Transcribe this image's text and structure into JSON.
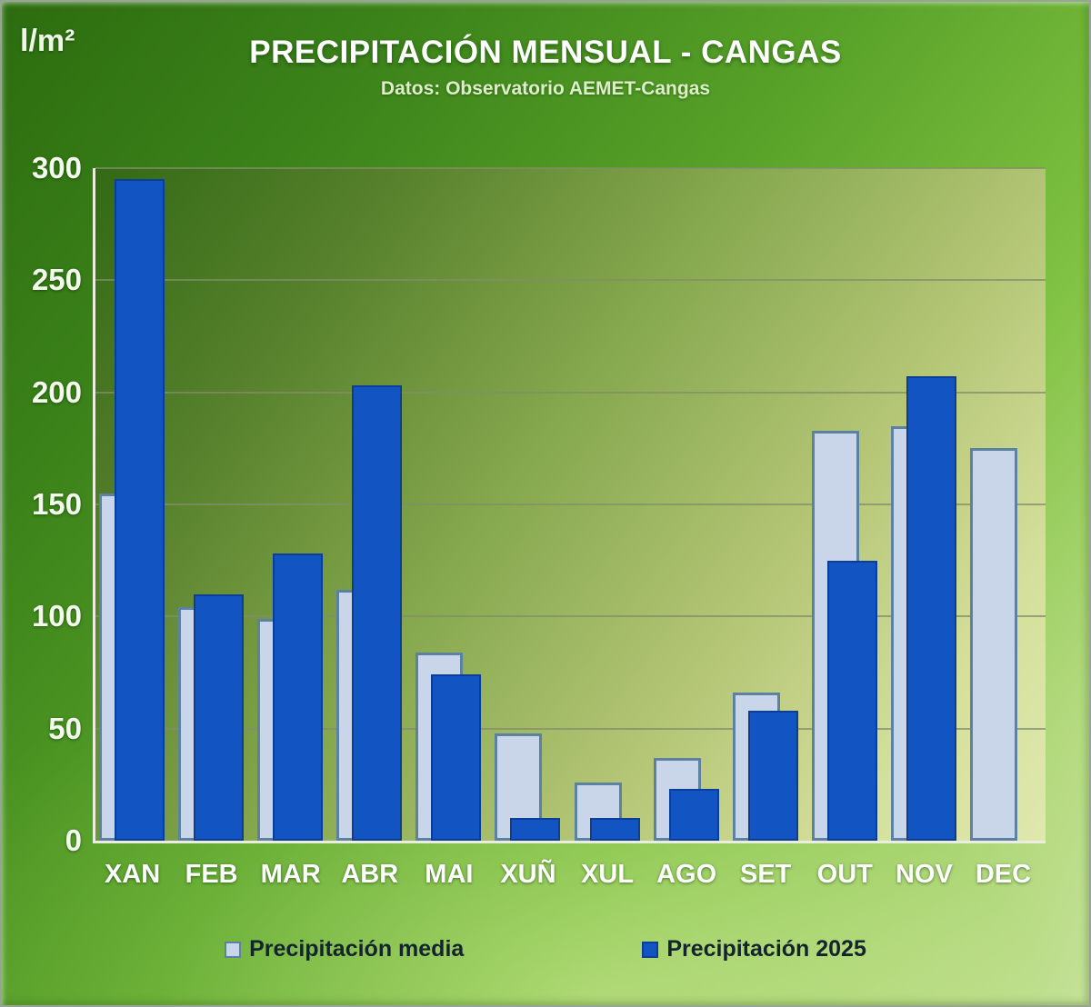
{
  "header": {
    "title": "PRECIPITACIÓN MENSUAL - CANGAS",
    "subtitle": "Datos: Observatorio AEMET-Cangas",
    "y_axis_unit": "l/m²"
  },
  "chart_data": {
    "type": "bar",
    "title": "PRECIPITACIÓN MENSUAL - CANGAS",
    "subtitle": "Datos: Observatorio AEMET-Cangas",
    "ylabel": "l/m²",
    "ylim": [
      0,
      300
    ],
    "ytick_interval": 50,
    "yticks": [
      300,
      250,
      200,
      150,
      100,
      50,
      0
    ],
    "grid": true,
    "legend_position": "bottom",
    "categories": [
      "XAN",
      "FEB",
      "MAR",
      "ABR",
      "MAI",
      "XUÑ",
      "XUL",
      "AGO",
      "SET",
      "OUT",
      "NOV",
      "DEC"
    ],
    "series": [
      {
        "name": "Precipitación media",
        "color": "#c9d6ea",
        "border_color": "#5d81a0",
        "values": [
          155,
          104,
          99,
          112,
          84,
          48,
          26,
          37,
          66,
          183,
          185,
          175
        ]
      },
      {
        "name": "Precipitación 2025",
        "color": "#1254c2",
        "border_color": "#0d3e97",
        "values": [
          295,
          110,
          128,
          203,
          74,
          10,
          10,
          23,
          58,
          125,
          207,
          null
        ]
      }
    ]
  },
  "colors": {
    "background_dark_green": "#2c6c0f",
    "background_light_green": "#d3e7aa",
    "plot_top_left": "#336a14",
    "plot_bottom_right": "#dfe8ad",
    "gridline": "#818d68",
    "axis_line": "#e9eedf",
    "title_text": "#ffffff",
    "legend_text": "#14242e"
  }
}
